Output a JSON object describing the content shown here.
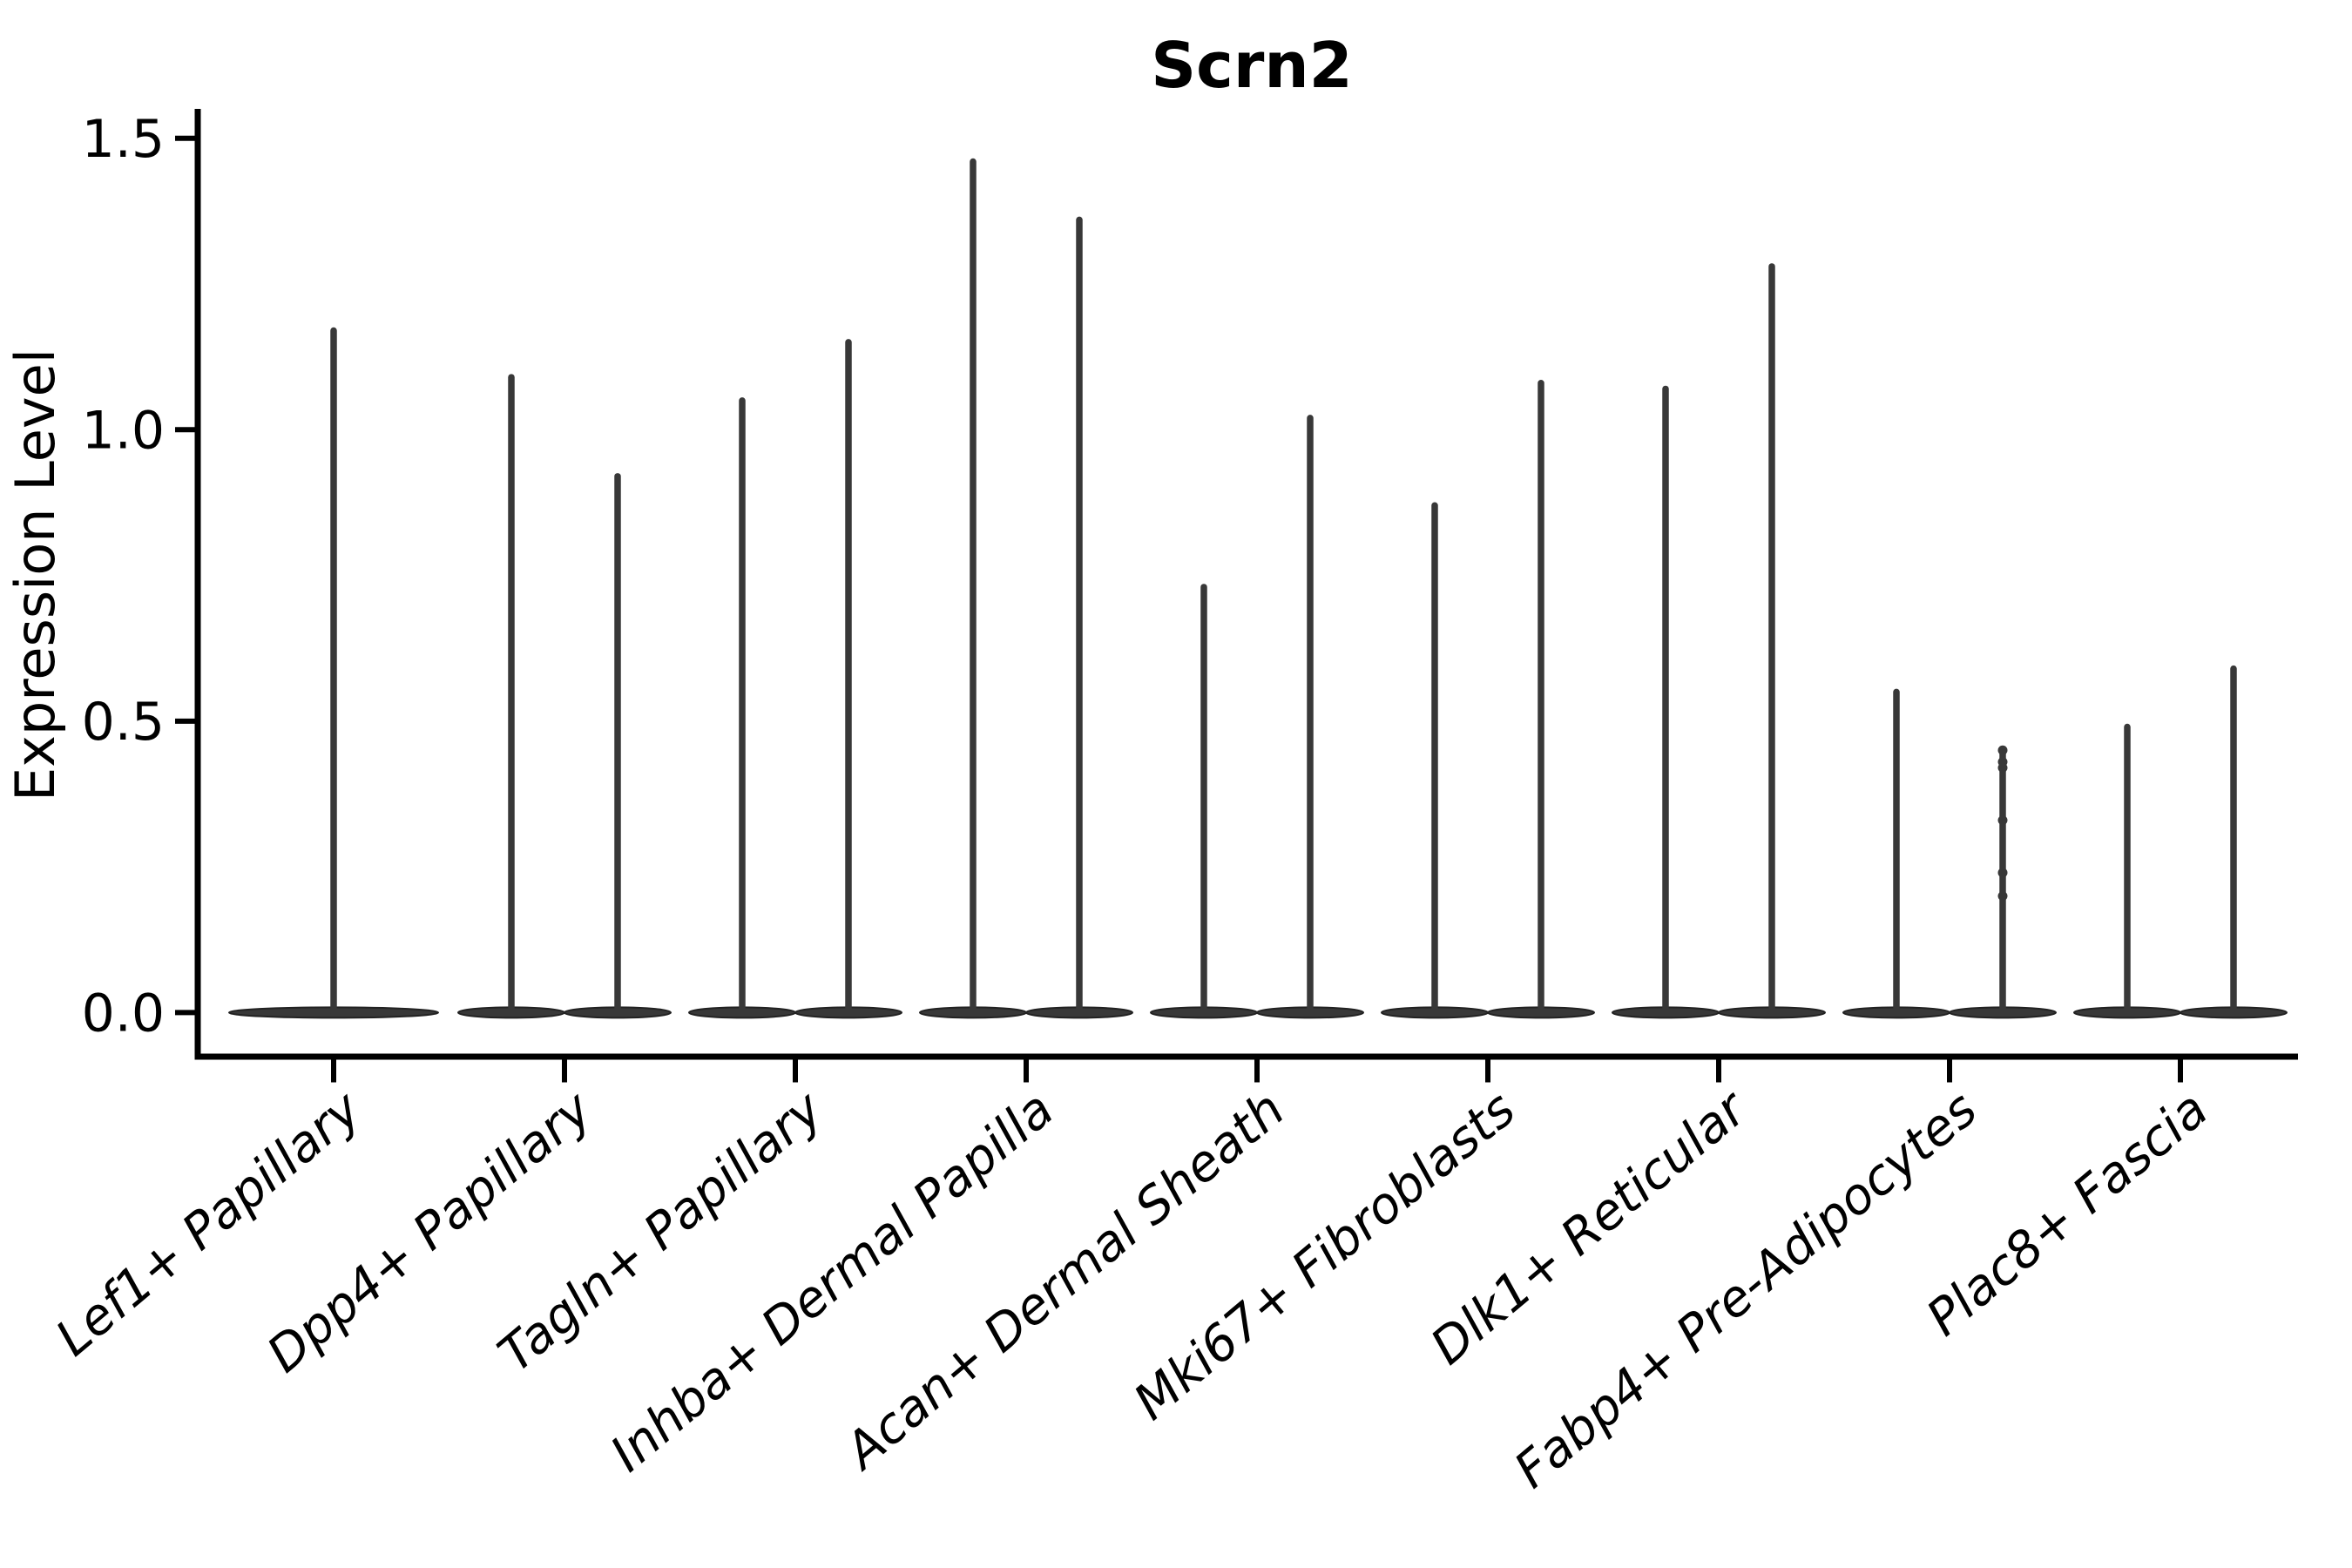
{
  "figure": {
    "title": "Scrn2",
    "ylabel": "Expression Level",
    "background_color": "#ffffff"
  },
  "chart_data": {
    "type": "violin",
    "title": "Scrn2",
    "subtitle": "",
    "xlabel": "",
    "ylabel": "Expression Level",
    "ylim": [
      -0.07,
      1.55
    ],
    "yticks": [
      0.0,
      0.5,
      1.0,
      1.5
    ],
    "ytick_labels": [
      "0.0",
      "0.5",
      "1.0",
      "1.5"
    ],
    "grid": false,
    "legend_position": "none",
    "x_label_rotation_deg": 40,
    "description": "Single-cell expression violin plot; each category shows needle-like violins collapsed at 0 with a thin tail up to the max expression value",
    "categories": [
      "Lef1+ Papillary",
      "Dpp4+ Papillary",
      "Tagln+ Papillary",
      "Inhba+ Dermal Papilla",
      "Acan+ Dermal Sheath",
      "Mki67+ Fibroblasts",
      "Dlk1+ Reticular",
      "Fabp4+ Pre-Adipocytes",
      "Plac8+ Fascia"
    ],
    "violins": [
      {
        "category": "Lef1+ Papillary",
        "split": false,
        "baseline_value": 0.0,
        "max_values": [
          1.17
        ]
      },
      {
        "category": "Dpp4+ Papillary",
        "split": true,
        "baseline_value": 0.0,
        "max_values": [
          1.09,
          0.92
        ]
      },
      {
        "category": "Tagln+ Papillary",
        "split": true,
        "baseline_value": 0.0,
        "max_values": [
          1.05,
          1.15
        ]
      },
      {
        "category": "Inhba+ Dermal Papilla",
        "split": true,
        "baseline_value": 0.0,
        "max_values": [
          1.46,
          1.36
        ]
      },
      {
        "category": "Acan+ Dermal Sheath",
        "split": true,
        "baseline_value": 0.0,
        "max_values": [
          0.73,
          1.02
        ]
      },
      {
        "category": "Mki67+ Fibroblasts",
        "split": true,
        "baseline_value": 0.0,
        "max_values": [
          0.87,
          1.08
        ]
      },
      {
        "category": "Dlk1+ Reticular",
        "split": true,
        "baseline_value": 0.0,
        "max_values": [
          1.07,
          1.28
        ]
      },
      {
        "category": "Fabp4+ Pre-Adipocytes",
        "split": true,
        "baseline_value": 0.0,
        "max_values": [
          0.55,
          0.45
        ],
        "jitter_dots_on_violin": 1,
        "jitter_dot_values": [
          0.45,
          0.43,
          0.42,
          0.33,
          0.24,
          0.2
        ]
      },
      {
        "category": "Plac8+ Fascia",
        "split": true,
        "baseline_value": 0.0,
        "max_values": [
          0.49,
          0.59
        ]
      }
    ],
    "style": {
      "violin_color": "#383838",
      "violin_edge_color": "#222222",
      "axis_color": "#000000",
      "text_color": "#000000"
    }
  }
}
